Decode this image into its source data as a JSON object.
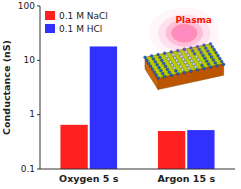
{
  "chart_data": {
    "type": "bar",
    "categories": [
      "Oxygen 5 s",
      "Argon 15 s"
    ],
    "series": [
      {
        "name": "0.1 M NaCl",
        "color": "#FF2020",
        "values": [
          0.65,
          0.5
        ]
      },
      {
        "name": "0.1 M HCl",
        "color": "#3030FF",
        "values": [
          18.0,
          0.52
        ]
      }
    ],
    "ylabel": "Conductance (nS)",
    "ylim": [
      0.1,
      100
    ],
    "yticks": [
      0.1,
      1,
      10,
      100
    ],
    "log": "y",
    "grid": false,
    "legend": "upper left",
    "annotations": [
      "Plasma"
    ]
  }
}
